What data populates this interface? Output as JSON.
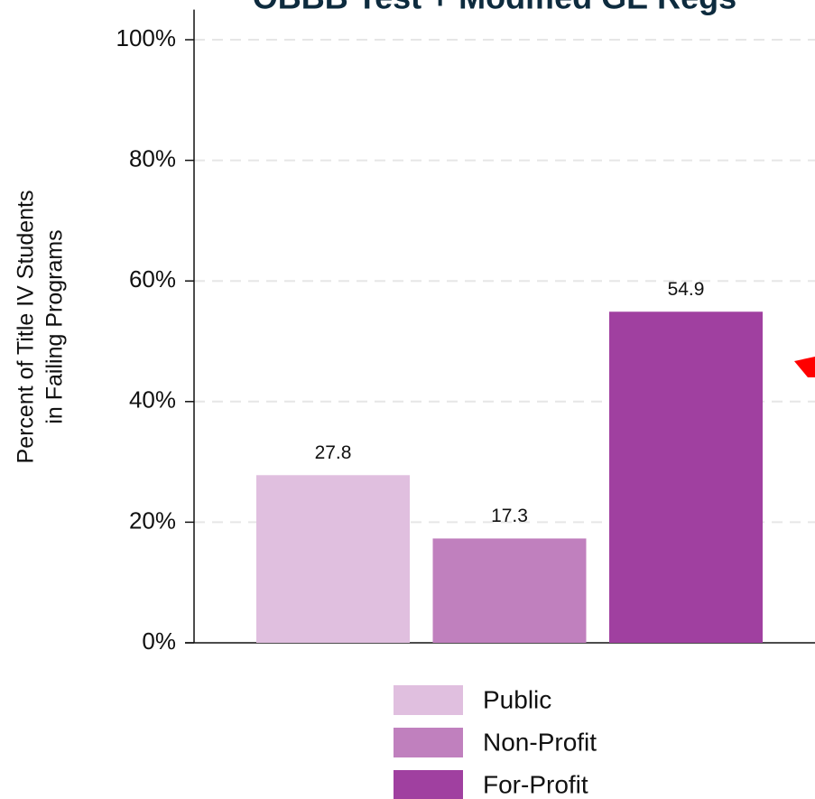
{
  "chart_data": {
    "type": "bar",
    "title": "OBBB Test + Modified GE Regs",
    "ylabel": [
      "Percent of Title IV Students",
      "in Failing Programs"
    ],
    "categories": [
      null
    ],
    "series": [
      {
        "name": "Public",
        "color": "#e0bfdf",
        "values": [
          27.8
        ]
      },
      {
        "name": "Non-Profit",
        "color": "#c080be",
        "values": [
          17.3
        ]
      },
      {
        "name": "For-Profit",
        "color": "#a040a0",
        "values": [
          54.9
        ]
      }
    ],
    "ylim": [
      0,
      105
    ],
    "yticks": [
      {
        "value": 0,
        "label": "0%"
      },
      {
        "value": 20,
        "label": "20%"
      },
      {
        "value": 40,
        "label": "40%"
      },
      {
        "value": 60,
        "label": "60%"
      },
      {
        "value": 80,
        "label": "80%"
      },
      {
        "value": 100,
        "label": "100%"
      }
    ],
    "grid": true,
    "legend": "bottom"
  }
}
